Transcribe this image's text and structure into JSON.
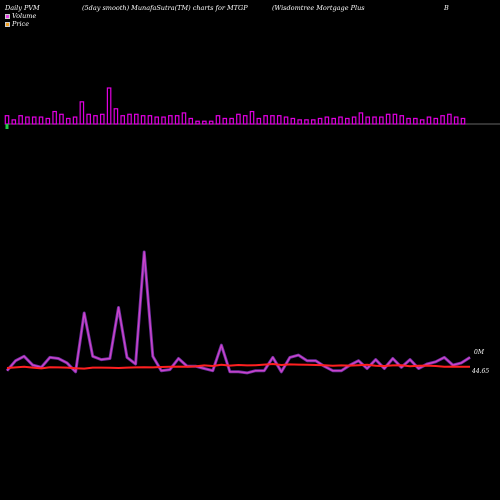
{
  "header": {
    "left": "Daily PVM",
    "mid": "(5day smooth) MunafaSutra(TM) charts for MTGP",
    "right": "(Wisdomtree   Mortgage   Plus",
    "far": "B"
  },
  "legend": {
    "volume_label": "Volume",
    "volume_color": "#e040e0",
    "price_label": "Price",
    "price_color": "#f0a020"
  },
  "colors": {
    "bar_up": "#e000e0",
    "bar_down": "#e000e0",
    "bar_green": "#22cc44",
    "line_volume": "#cc44cc",
    "line_price": "#ff2020",
    "axis": "#888888"
  },
  "chart_data": {
    "type": "line",
    "volume_bars": [
      6,
      3,
      6,
      5,
      5,
      5,
      4,
      9,
      7,
      4,
      5,
      16,
      7,
      6,
      7,
      26,
      11,
      6,
      7,
      7,
      6,
      6,
      5,
      5,
      6,
      6,
      8,
      4,
      2,
      2,
      2,
      6,
      4,
      4,
      7,
      6,
      9,
      4,
      6,
      6,
      6,
      5,
      4,
      3,
      3,
      3,
      4,
      5,
      4,
      5,
      4,
      5,
      8,
      5,
      5,
      5,
      7,
      7,
      6,
      4,
      4,
      3,
      5,
      4,
      6,
      7,
      5,
      4
    ],
    "volume_dirs": [
      1,
      -1,
      1,
      -1,
      1,
      1,
      -1,
      1,
      1,
      -1,
      1,
      1,
      1,
      1,
      1,
      1,
      1,
      1,
      1,
      1,
      1,
      1,
      1,
      1,
      1,
      1,
      1,
      1,
      1,
      1,
      1,
      1,
      1,
      1,
      1,
      1,
      1,
      1,
      1,
      1,
      1,
      1,
      1,
      1,
      1,
      1,
      1,
      1,
      1,
      1,
      1,
      1,
      1,
      1,
      1,
      1,
      1,
      1,
      1,
      1,
      1,
      1,
      1,
      1,
      1,
      1,
      1,
      1
    ],
    "volume_line": [
      3,
      12,
      16,
      8,
      6,
      15,
      14,
      10,
      2,
      55,
      16,
      13,
      14,
      60,
      15,
      9,
      110,
      16,
      3,
      4,
      14,
      7,
      7,
      5,
      3,
      26,
      2,
      2,
      1,
      3,
      3,
      15,
      2,
      15,
      17,
      12,
      12,
      7,
      3,
      3,
      8,
      12,
      5,
      13,
      5,
      14,
      6,
      13,
      5,
      9,
      11,
      15,
      8,
      10,
      15
    ],
    "price_line": [
      44.0,
      44.3,
      44.6,
      44.2,
      43.8,
      44.4,
      44.3,
      44.2,
      43.9,
      43.7,
      44.2,
      44.2,
      44.1,
      44.0,
      44.2,
      44.3,
      44.4,
      44.3,
      44.5,
      44.6,
      44.7,
      44.6,
      44.8,
      45.3,
      45.0,
      45.6,
      45.2,
      45.5,
      45.3,
      45.4,
      45.7,
      46.0,
      45.5,
      45.8,
      45.7,
      45.6,
      45.5,
      45.4,
      45.1,
      45.3,
      45.2,
      45.4,
      45.6,
      45.1,
      45.0,
      45.3,
      45.4,
      44.9,
      45.1,
      45.2,
      45.0,
      44.6,
      44.7,
      44.6,
      44.65
    ],
    "volume_label_right": "0M",
    "price_label_right": "44.65",
    "legend": [
      "Volume",
      "Price"
    ]
  }
}
